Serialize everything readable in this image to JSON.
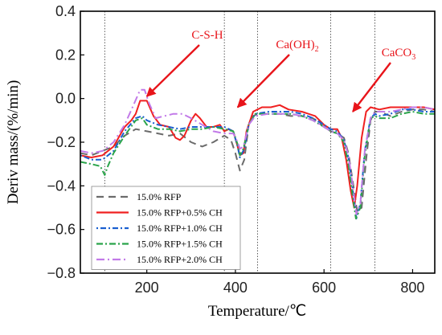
{
  "chart_data": {
    "type": "line",
    "xlabel": "Temperature/℃",
    "ylabel": "Deriv mass/(%/min)",
    "xlim": [
      50,
      850
    ],
    "ylim": [
      -0.8,
      0.4
    ],
    "xticks": [
      200,
      400,
      600,
      800
    ],
    "yticks": [
      -0.8,
      -0.6,
      -0.4,
      -0.2,
      0.0,
      0.2,
      0.4
    ],
    "ytick_labels": [
      "−0.8",
      "−0.6",
      "−0.4",
      "−0.2",
      "0.0",
      "0.2",
      "0.4"
    ],
    "grid": false,
    "legend_position": "bottom-left",
    "vlines": [
      105,
      375,
      450,
      615,
      715
    ],
    "annotations": [
      {
        "text": "C-S-H",
        "x": 200,
        "y": 0.01
      },
      {
        "text": "Ca(OH)",
        "sub": "2",
        "x": 405,
        "y": -0.04
      },
      {
        "text": "CaCO",
        "sub": "3",
        "x": 665,
        "y": -0.06
      }
    ],
    "series": [
      {
        "name": "15.0% RFP",
        "color": "#6b6b6b",
        "dash": "9,6",
        "points": [
          [
            50,
            -0.25
          ],
          [
            75,
            -0.26
          ],
          [
            100,
            -0.24
          ],
          [
            125,
            -0.22
          ],
          [
            150,
            -0.17
          ],
          [
            175,
            -0.14
          ],
          [
            200,
            -0.15
          ],
          [
            225,
            -0.16
          ],
          [
            250,
            -0.17
          ],
          [
            275,
            -0.16
          ],
          [
            300,
            -0.2
          ],
          [
            325,
            -0.22
          ],
          [
            350,
            -0.2
          ],
          [
            375,
            -0.17
          ],
          [
            390,
            -0.19
          ],
          [
            400,
            -0.25
          ],
          [
            410,
            -0.33
          ],
          [
            420,
            -0.28
          ],
          [
            430,
            -0.12
          ],
          [
            440,
            -0.08
          ],
          [
            450,
            -0.07
          ],
          [
            475,
            -0.07
          ],
          [
            500,
            -0.07
          ],
          [
            525,
            -0.08
          ],
          [
            550,
            -0.08
          ],
          [
            575,
            -0.09
          ],
          [
            600,
            -0.13
          ],
          [
            615,
            -0.15
          ],
          [
            630,
            -0.16
          ],
          [
            645,
            -0.18
          ],
          [
            655,
            -0.25
          ],
          [
            665,
            -0.38
          ],
          [
            675,
            -0.52
          ],
          [
            685,
            -0.5
          ],
          [
            695,
            -0.28
          ],
          [
            705,
            -0.1
          ],
          [
            715,
            -0.06
          ],
          [
            725,
            -0.06
          ],
          [
            750,
            -0.08
          ],
          [
            775,
            -0.06
          ],
          [
            800,
            -0.05
          ],
          [
            825,
            -0.05
          ],
          [
            850,
            -0.06
          ]
        ]
      },
      {
        "name": "15.0% RFP+0.5% CH",
        "color": "#f02020",
        "dash": "",
        "points": [
          [
            50,
            -0.26
          ],
          [
            75,
            -0.27
          ],
          [
            100,
            -0.26
          ],
          [
            125,
            -0.22
          ],
          [
            150,
            -0.13
          ],
          [
            165,
            -0.1
          ],
          [
            175,
            -0.07
          ],
          [
            185,
            -0.01
          ],
          [
            200,
            -0.01
          ],
          [
            215,
            -0.08
          ],
          [
            230,
            -0.12
          ],
          [
            250,
            -0.13
          ],
          [
            265,
            -0.18
          ],
          [
            275,
            -0.19
          ],
          [
            285,
            -0.17
          ],
          [
            300,
            -0.1
          ],
          [
            310,
            -0.07
          ],
          [
            320,
            -0.09
          ],
          [
            335,
            -0.13
          ],
          [
            350,
            -0.13
          ],
          [
            365,
            -0.12
          ],
          [
            375,
            -0.15
          ],
          [
            385,
            -0.14
          ],
          [
            395,
            -0.15
          ],
          [
            405,
            -0.22
          ],
          [
            410,
            -0.26
          ],
          [
            418,
            -0.25
          ],
          [
            425,
            -0.15
          ],
          [
            440,
            -0.06
          ],
          [
            460,
            -0.04
          ],
          [
            480,
            -0.04
          ],
          [
            500,
            -0.03
          ],
          [
            520,
            -0.05
          ],
          [
            550,
            -0.06
          ],
          [
            580,
            -0.08
          ],
          [
            600,
            -0.12
          ],
          [
            615,
            -0.14
          ],
          [
            630,
            -0.14
          ],
          [
            640,
            -0.18
          ],
          [
            650,
            -0.28
          ],
          [
            660,
            -0.42
          ],
          [
            668,
            -0.5
          ],
          [
            675,
            -0.4
          ],
          [
            685,
            -0.18
          ],
          [
            695,
            -0.06
          ],
          [
            705,
            -0.04
          ],
          [
            725,
            -0.05
          ],
          [
            750,
            -0.04
          ],
          [
            775,
            -0.04
          ],
          [
            800,
            -0.04
          ],
          [
            825,
            -0.04
          ],
          [
            850,
            -0.05
          ]
        ]
      },
      {
        "name": "15.0% RFP+1.0% CH",
        "color": "#1a5fd0",
        "dash": "2,3,7,3",
        "points": [
          [
            50,
            -0.26
          ],
          [
            75,
            -0.28
          ],
          [
            100,
            -0.28
          ],
          [
            125,
            -0.24
          ],
          [
            150,
            -0.15
          ],
          [
            175,
            -0.09
          ],
          [
            190,
            -0.08
          ],
          [
            200,
            -0.1
          ],
          [
            225,
            -0.12
          ],
          [
            250,
            -0.13
          ],
          [
            275,
            -0.14
          ],
          [
            300,
            -0.13
          ],
          [
            325,
            -0.13
          ],
          [
            350,
            -0.13
          ],
          [
            375,
            -0.13
          ],
          [
            395,
            -0.15
          ],
          [
            405,
            -0.22
          ],
          [
            410,
            -0.27
          ],
          [
            420,
            -0.23
          ],
          [
            430,
            -0.12
          ],
          [
            445,
            -0.07
          ],
          [
            475,
            -0.06
          ],
          [
            500,
            -0.06
          ],
          [
            525,
            -0.06
          ],
          [
            550,
            -0.07
          ],
          [
            575,
            -0.09
          ],
          [
            600,
            -0.12
          ],
          [
            615,
            -0.14
          ],
          [
            630,
            -0.15
          ],
          [
            645,
            -0.19
          ],
          [
            655,
            -0.27
          ],
          [
            665,
            -0.42
          ],
          [
            673,
            -0.55
          ],
          [
            682,
            -0.48
          ],
          [
            692,
            -0.24
          ],
          [
            705,
            -0.09
          ],
          [
            715,
            -0.07
          ],
          [
            725,
            -0.08
          ],
          [
            750,
            -0.07
          ],
          [
            775,
            -0.05
          ],
          [
            800,
            -0.05
          ],
          [
            825,
            -0.06
          ],
          [
            850,
            -0.06
          ]
        ]
      },
      {
        "name": "15.0% RFP+1.5% CH",
        "color": "#2aa44a",
        "dash": "8,3,2,3",
        "points": [
          [
            50,
            -0.29
          ],
          [
            75,
            -0.3
          ],
          [
            95,
            -0.31
          ],
          [
            105,
            -0.35
          ],
          [
            112,
            -0.31
          ],
          [
            125,
            -0.25
          ],
          [
            150,
            -0.17
          ],
          [
            175,
            -0.1
          ],
          [
            190,
            -0.09
          ],
          [
            200,
            -0.12
          ],
          [
            225,
            -0.14
          ],
          [
            250,
            -0.14
          ],
          [
            275,
            -0.15
          ],
          [
            300,
            -0.14
          ],
          [
            325,
            -0.14
          ],
          [
            350,
            -0.13
          ],
          [
            375,
            -0.14
          ],
          [
            395,
            -0.15
          ],
          [
            405,
            -0.21
          ],
          [
            410,
            -0.26
          ],
          [
            418,
            -0.23
          ],
          [
            430,
            -0.12
          ],
          [
            445,
            -0.07
          ],
          [
            475,
            -0.07
          ],
          [
            500,
            -0.07
          ],
          [
            525,
            -0.07
          ],
          [
            550,
            -0.08
          ],
          [
            575,
            -0.1
          ],
          [
            600,
            -0.13
          ],
          [
            615,
            -0.15
          ],
          [
            630,
            -0.16
          ],
          [
            645,
            -0.2
          ],
          [
            655,
            -0.3
          ],
          [
            665,
            -0.45
          ],
          [
            672,
            -0.55
          ],
          [
            682,
            -0.5
          ],
          [
            692,
            -0.26
          ],
          [
            705,
            -0.09
          ],
          [
            715,
            -0.08
          ],
          [
            725,
            -0.09
          ],
          [
            750,
            -0.09
          ],
          [
            775,
            -0.07
          ],
          [
            800,
            -0.06
          ],
          [
            825,
            -0.07
          ],
          [
            850,
            -0.07
          ]
        ]
      },
      {
        "name": "15.0% RFP+2.0% CH",
        "color": "#c27ae8",
        "dash": "10,4,2,4",
        "points": [
          [
            50,
            -0.24
          ],
          [
            75,
            -0.25
          ],
          [
            100,
            -0.24
          ],
          [
            125,
            -0.2
          ],
          [
            150,
            -0.12
          ],
          [
            170,
            -0.03
          ],
          [
            185,
            0.04
          ],
          [
            195,
            0.04
          ],
          [
            205,
            -0.02
          ],
          [
            220,
            -0.09
          ],
          [
            240,
            -0.08
          ],
          [
            260,
            -0.07
          ],
          [
            280,
            -0.07
          ],
          [
            300,
            -0.09
          ],
          [
            325,
            -0.12
          ],
          [
            350,
            -0.15
          ],
          [
            375,
            -0.16
          ],
          [
            395,
            -0.16
          ],
          [
            405,
            -0.2
          ],
          [
            410,
            -0.23
          ],
          [
            418,
            -0.22
          ],
          [
            430,
            -0.12
          ],
          [
            445,
            -0.08
          ],
          [
            475,
            -0.07
          ],
          [
            500,
            -0.07
          ],
          [
            525,
            -0.07
          ],
          [
            550,
            -0.08
          ],
          [
            575,
            -0.1
          ],
          [
            600,
            -0.13
          ],
          [
            615,
            -0.15
          ],
          [
            630,
            -0.16
          ],
          [
            645,
            -0.19
          ],
          [
            655,
            -0.26
          ],
          [
            665,
            -0.4
          ],
          [
            673,
            -0.53
          ],
          [
            682,
            -0.48
          ],
          [
            692,
            -0.24
          ],
          [
            705,
            -0.09
          ],
          [
            715,
            -0.06
          ],
          [
            725,
            -0.06
          ],
          [
            750,
            -0.06
          ],
          [
            775,
            -0.05
          ],
          [
            800,
            -0.04
          ],
          [
            825,
            -0.04
          ],
          [
            850,
            -0.05
          ]
        ]
      }
    ]
  }
}
